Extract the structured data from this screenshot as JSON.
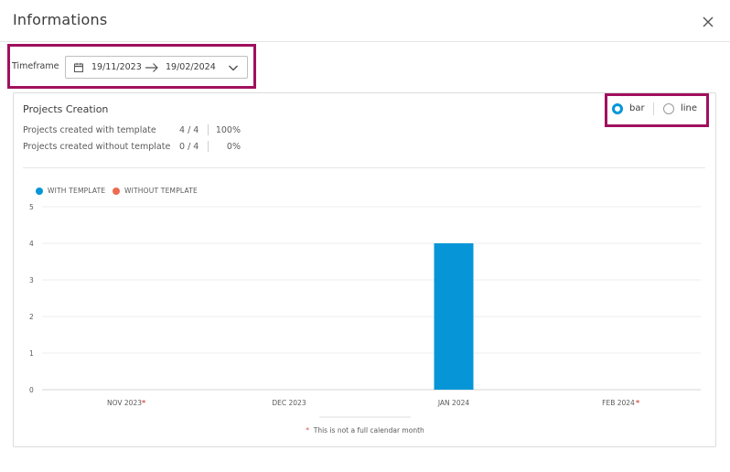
{
  "dialog": {
    "title": "Informations",
    "close_icon": "close-icon"
  },
  "timeframe": {
    "label": "Timeframe",
    "start": "19/11/2023",
    "end": "19/02/2024",
    "icons": {
      "calendar": "calendar-icon",
      "arrow": "arrow-right-icon",
      "dropdown": "chevron-down-icon"
    }
  },
  "card": {
    "title": "Projects Creation",
    "stats": [
      {
        "label": "Projects created with template",
        "count": "4 / 4",
        "percent": "100%"
      },
      {
        "label": "Projects created without template",
        "count": "0 / 4",
        "percent": "0%"
      }
    ],
    "chart_type_toggle": {
      "options": [
        {
          "label": "bar",
          "selected": true
        },
        {
          "label": "line",
          "selected": false
        }
      ]
    },
    "footnote": {
      "star": "*",
      "text": "This is not a full calendar month"
    }
  },
  "colors": {
    "with_template": "#0696d7",
    "without_template": "#ec6c4f",
    "highlight": "#a0105e",
    "asterisk": "#d9534f"
  },
  "chart_data": {
    "type": "bar",
    "categories": [
      "NOV 2023",
      "DEC 2023",
      "JAN 2024",
      "FEB 2024"
    ],
    "partial_month_flags": [
      true,
      false,
      false,
      true
    ],
    "series": [
      {
        "name": "WITH TEMPLATE",
        "values": [
          0,
          0,
          4,
          0
        ]
      },
      {
        "name": "WITHOUT TEMPLATE",
        "values": [
          0,
          0,
          0,
          0
        ]
      }
    ],
    "y_ticks": [
      "0",
      "1",
      "2",
      "3",
      "4",
      "5"
    ],
    "ylim": [
      0,
      5
    ],
    "grid": true,
    "legend_position": "top-left"
  }
}
